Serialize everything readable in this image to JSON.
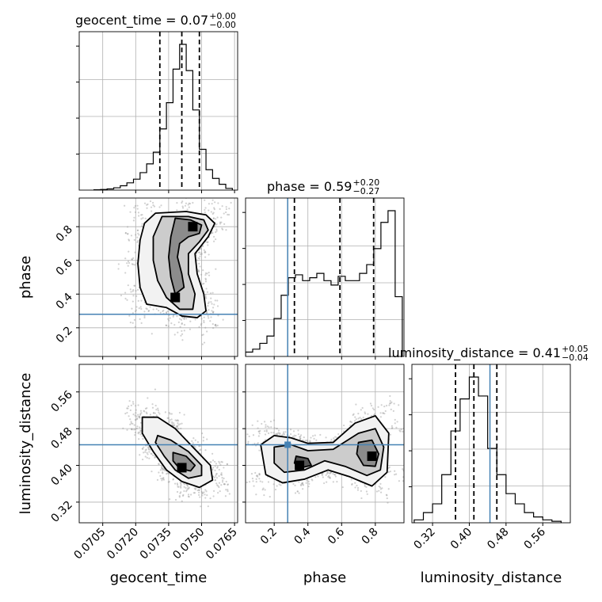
{
  "chart_data": {
    "type": "corner",
    "parameters": [
      "geocent_time",
      "phase",
      "luminosity_distance"
    ],
    "axis_labels": {
      "geocent_time": "geocent_time",
      "phase": "phase",
      "luminosity_distance": "luminosity_distance"
    },
    "titles": [
      {
        "param": "geocent_time",
        "text": "geocent_time = 0.07",
        "plus": "+0.00",
        "minus": "−0.00"
      },
      {
        "param": "phase",
        "text": "phase = 0.59",
        "plus": "+0.20",
        "minus": "−0.27"
      },
      {
        "param": "luminosity_distance",
        "text": "luminosity_distance = 0.41",
        "plus": "+0.05",
        "minus": "−0.04"
      }
    ],
    "ranges": {
      "geocent_time": [
        0.06943,
        0.07664
      ],
      "phase": [
        0.03,
        0.97
      ],
      "luminosity_distance": [
        0.275,
        0.62
      ]
    },
    "ticks": {
      "geocent_time": {
        "values": [
          0.0705,
          0.072,
          0.0735,
          0.075,
          0.0765
        ],
        "labels": [
          "0.0705",
          "0.0720",
          "0.0735",
          "0.0750",
          "0.0765"
        ]
      },
      "phase": {
        "values": [
          0.2,
          0.4,
          0.6,
          0.8
        ],
        "labels": [
          "0.2",
          "0.4",
          "0.6",
          "0.8"
        ]
      },
      "luminosity_distance": {
        "values": [
          0.32,
          0.4,
          0.48,
          0.56
        ],
        "labels": [
          "0.32",
          "0.40",
          "0.48",
          "0.56"
        ]
      }
    },
    "truths": {
      "geocent_time": null,
      "phase": 0.28,
      "luminosity_distance": 0.445
    },
    "quantiles": {
      "geocent_time": [
        0.0731,
        0.0741,
        0.0749
      ],
      "phase": [
        0.32,
        0.59,
        0.79
      ],
      "luminosity_distance": [
        0.37,
        0.41,
        0.46
      ]
    },
    "histograms": {
      "geocent_time": [
        0.002,
        0.004,
        0.008,
        0.016,
        0.03,
        0.05,
        0.075,
        0.12,
        0.18,
        0.26,
        0.42,
        0.6,
        0.83,
        1.0,
        0.82,
        0.55,
        0.28,
        0.14,
        0.08,
        0.04,
        0.012
      ],
      "phase": [
        0.03,
        0.05,
        0.09,
        0.14,
        0.26,
        0.42,
        0.54,
        0.56,
        0.52,
        0.54,
        0.57,
        0.52,
        0.49,
        0.55,
        0.52,
        0.52,
        0.57,
        0.63,
        0.74,
        0.92,
        1.0,
        0.41
      ],
      "luminosity_distance": [
        0.02,
        0.07,
        0.13,
        0.33,
        0.63,
        0.85,
        1.0,
        0.87,
        0.51,
        0.33,
        0.2,
        0.13,
        0.07,
        0.04,
        0.02,
        0.01
      ]
    },
    "hist_bin_ranges": {
      "geocent_time": [
        0.0701,
        0.0764
      ],
      "phase": [
        0.03,
        0.96
      ],
      "luminosity_distance": [
        0.28,
        0.6
      ]
    },
    "contours": [
      {
        "x": "geocent_time",
        "y": "phase",
        "levels": [
          [
            [
              0.0729,
              0.88
            ],
            [
              0.0743,
              0.89
            ],
            [
              0.0752,
              0.87
            ],
            [
              0.0756,
              0.82
            ],
            [
              0.0753,
              0.74
            ],
            [
              0.0747,
              0.64
            ],
            [
              0.0748,
              0.52
            ],
            [
              0.0751,
              0.4
            ],
            [
              0.0752,
              0.3
            ],
            [
              0.0748,
              0.26
            ],
            [
              0.0741,
              0.27
            ],
            [
              0.0734,
              0.32
            ],
            [
              0.0725,
              0.34
            ],
            [
              0.0722,
              0.44
            ],
            [
              0.0721,
              0.58
            ],
            [
              0.0722,
              0.72
            ],
            [
              0.0724,
              0.82
            ]
          ],
          [
            [
              0.0732,
              0.86
            ],
            [
              0.0744,
              0.86
            ],
            [
              0.0751,
              0.84
            ],
            [
              0.0753,
              0.78
            ],
            [
              0.0749,
              0.71
            ],
            [
              0.0744,
              0.64
            ],
            [
              0.0744,
              0.52
            ],
            [
              0.0747,
              0.4
            ],
            [
              0.0746,
              0.31
            ],
            [
              0.074,
              0.31
            ],
            [
              0.0734,
              0.38
            ],
            [
              0.073,
              0.48
            ],
            [
              0.0728,
              0.6
            ],
            [
              0.0728,
              0.74
            ]
          ],
          [
            [
              0.0738,
              0.85
            ],
            [
              0.0745,
              0.84
            ],
            [
              0.075,
              0.81
            ],
            [
              0.0749,
              0.76
            ],
            [
              0.0744,
              0.74
            ],
            [
              0.074,
              0.7
            ],
            [
              0.0739,
              0.62
            ],
            [
              0.0741,
              0.52
            ],
            [
              0.0742,
              0.44
            ],
            [
              0.0738,
              0.4
            ],
            [
              0.0736,
              0.5
            ],
            [
              0.0735,
              0.62
            ],
            [
              0.0736,
              0.74
            ]
          ]
        ]
      },
      {
        "x": "geocent_time",
        "y": "luminosity_distance",
        "levels": [
          [
            [
              0.0723,
              0.505
            ],
            [
              0.073,
              0.505
            ],
            [
              0.0738,
              0.48
            ],
            [
              0.0746,
              0.44
            ],
            [
              0.0754,
              0.4
            ],
            [
              0.0755,
              0.368
            ],
            [
              0.0749,
              0.352
            ],
            [
              0.0741,
              0.365
            ],
            [
              0.0734,
              0.39
            ],
            [
              0.0728,
              0.43
            ],
            [
              0.0723,
              0.47
            ]
          ],
          [
            [
              0.073,
              0.465
            ],
            [
              0.0736,
              0.455
            ],
            [
              0.0744,
              0.43
            ],
            [
              0.075,
              0.4
            ],
            [
              0.075,
              0.378
            ],
            [
              0.0744,
              0.372
            ],
            [
              0.0738,
              0.39
            ],
            [
              0.0733,
              0.42
            ],
            [
              0.0729,
              0.45
            ]
          ],
          [
            [
              0.0737,
              0.428
            ],
            [
              0.0743,
              0.42
            ],
            [
              0.0747,
              0.4
            ],
            [
              0.0745,
              0.388
            ],
            [
              0.074,
              0.393
            ],
            [
              0.0737,
              0.41
            ]
          ]
        ]
      },
      {
        "x": "phase",
        "y": "luminosity_distance",
        "levels": [
          [
            [
              0.12,
              0.445
            ],
            [
              0.2,
              0.465
            ],
            [
              0.3,
              0.46
            ],
            [
              0.4,
              0.448
            ],
            [
              0.55,
              0.45
            ],
            [
              0.68,
              0.492
            ],
            [
              0.8,
              0.508
            ],
            [
              0.88,
              0.47
            ],
            [
              0.87,
              0.385
            ],
            [
              0.78,
              0.355
            ],
            [
              0.65,
              0.375
            ],
            [
              0.52,
              0.39
            ],
            [
              0.38,
              0.37
            ],
            [
              0.25,
              0.362
            ],
            [
              0.15,
              0.38
            ]
          ],
          [
            [
              0.2,
              0.44
            ],
            [
              0.3,
              0.445
            ],
            [
              0.4,
              0.432
            ],
            [
              0.55,
              0.435
            ],
            [
              0.7,
              0.47
            ],
            [
              0.8,
              0.48
            ],
            [
              0.85,
              0.44
            ],
            [
              0.83,
              0.39
            ],
            [
              0.75,
              0.378
            ],
            [
              0.62,
              0.398
            ],
            [
              0.5,
              0.41
            ],
            [
              0.38,
              0.39
            ],
            [
              0.26,
              0.385
            ],
            [
              0.2,
              0.405
            ]
          ],
          [
            [
              0.7,
              0.45
            ],
            [
              0.78,
              0.455
            ],
            [
              0.82,
              0.425
            ],
            [
              0.8,
              0.398
            ],
            [
              0.73,
              0.4
            ],
            [
              0.69,
              0.425
            ]
          ],
          [
            [
              0.33,
              0.42
            ],
            [
              0.4,
              0.415
            ],
            [
              0.42,
              0.4
            ],
            [
              0.36,
              0.395
            ],
            [
              0.32,
              0.405
            ]
          ]
        ]
      }
    ],
    "density_peaks": [
      {
        "x": "geocent_time",
        "y": "phase",
        "cx": 0.0746,
        "cy": 0.8
      },
      {
        "x": "geocent_time",
        "y": "phase",
        "cx": 0.0738,
        "cy": 0.38
      },
      {
        "x": "geocent_time",
        "y": "luminosity_distance",
        "cx": 0.0741,
        "cy": 0.395
      },
      {
        "x": "phase",
        "y": "luminosity_distance",
        "cx": 0.78,
        "cy": 0.42
      },
      {
        "x": "phase",
        "y": "luminosity_distance",
        "cx": 0.35,
        "cy": 0.4
      }
    ],
    "grid": true,
    "truth_color": "#4682b4",
    "line_color": "#000000",
    "scatter_color": "#9a9a9a"
  }
}
